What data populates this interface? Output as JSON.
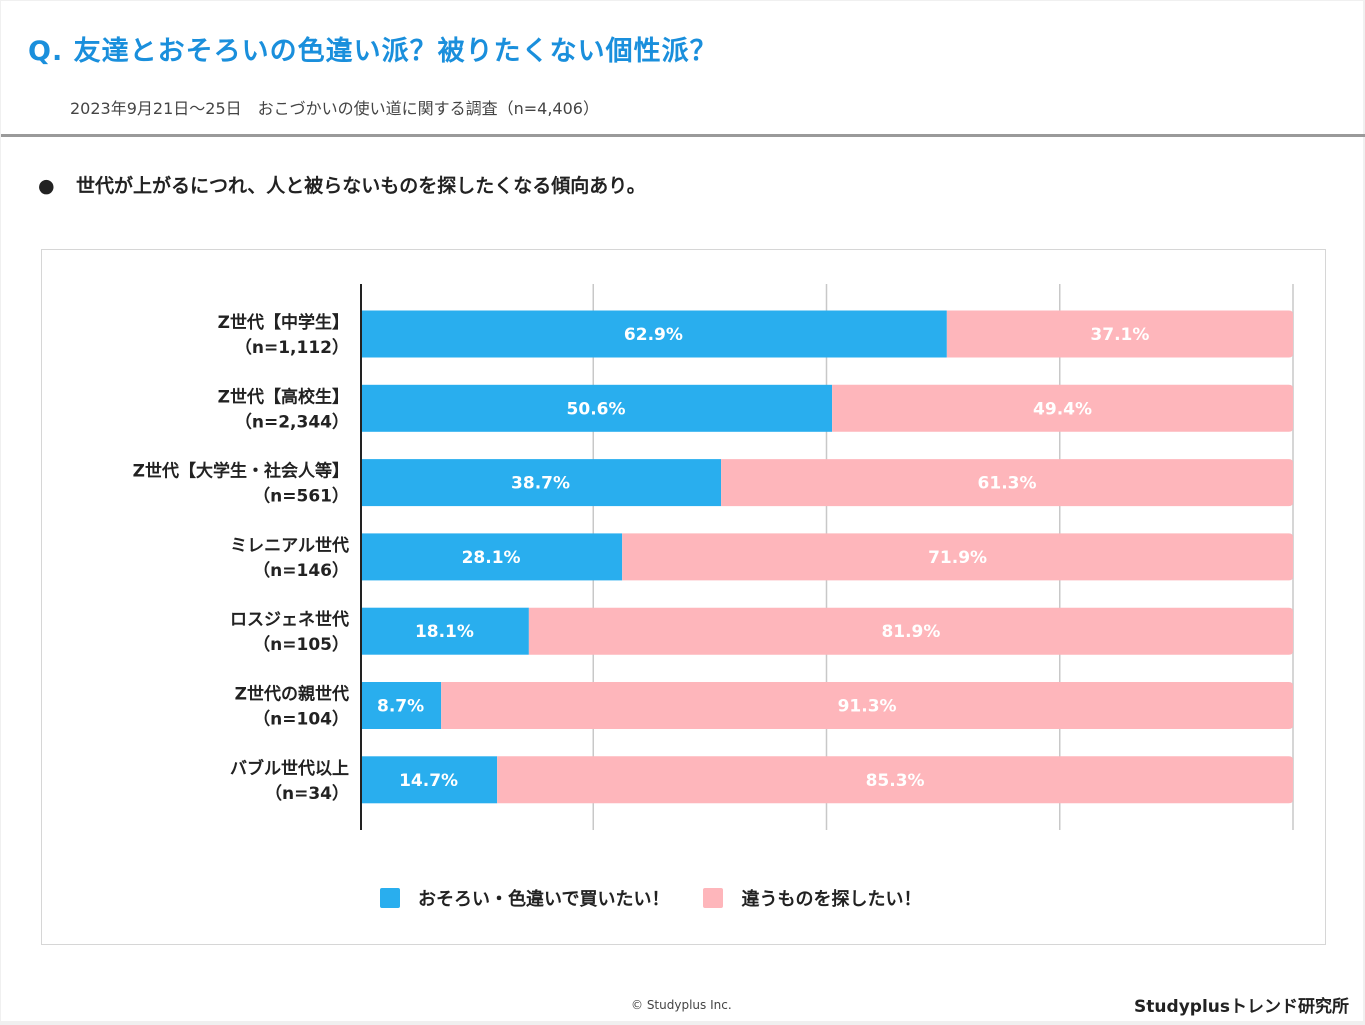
{
  "header": {
    "title": "Q. 友達とおそろいの色違い派？被りたくない個性派？",
    "subtitle": "2023年9月21日〜25日　おこづかいの使い道に関する調査（n=4,406）"
  },
  "summary": {
    "bullet_icon": "bullet-dot",
    "text": "世代が上がるにつれ、人と被らないものを探したくなる傾向あり。"
  },
  "footer": {
    "copyright": "© Studyplus Inc.",
    "brand": "Studyplusトレンド研究所"
  },
  "chart_data": {
    "type": "bar",
    "orientation": "horizontal",
    "stacked": true,
    "title": "Q. 友達とおそろいの色違い派？被りたくない個性派？",
    "xlabel": "",
    "ylabel": "",
    "xlim": [
      0,
      100
    ],
    "unit": "%",
    "grid": true,
    "gridlines": [
      25,
      50,
      75,
      100
    ],
    "legend_position": "bottom",
    "categories": [
      {
        "name": "Z世代【中学生】",
        "n": "（n=1,112）"
      },
      {
        "name": "Z世代【高校生】",
        "n": "（n=2,344）"
      },
      {
        "name": "Z世代【大学生・社会人等】",
        "n": "（n=561）"
      },
      {
        "name": "ミレニアル世代",
        "n": "（n=146）"
      },
      {
        "name": "ロスジェネ世代",
        "n": "（n=105）"
      },
      {
        "name": "Z世代の親世代",
        "n": "（n=104）"
      },
      {
        "name": "バブル世代以上",
        "n": "（n=34）"
      }
    ],
    "series": [
      {
        "name": "おそろい・色違いで買いたい！",
        "color": "#29aeee",
        "values": [
          62.9,
          50.6,
          38.7,
          28.1,
          18.1,
          8.7,
          14.7
        ],
        "labels": [
          "62.9%",
          "50.6%",
          "38.7%",
          "28.1%",
          "18.1%",
          "8.7%",
          "14.7%"
        ]
      },
      {
        "name": "違うものを探したい！",
        "color": "#feb6bb",
        "values": [
          37.1,
          49.4,
          61.3,
          71.9,
          81.9,
          91.3,
          85.3
        ],
        "labels": [
          "37.1%",
          "49.4%",
          "61.3%",
          "71.9%",
          "81.9%",
          "91.3%",
          "85.3%"
        ]
      }
    ]
  }
}
